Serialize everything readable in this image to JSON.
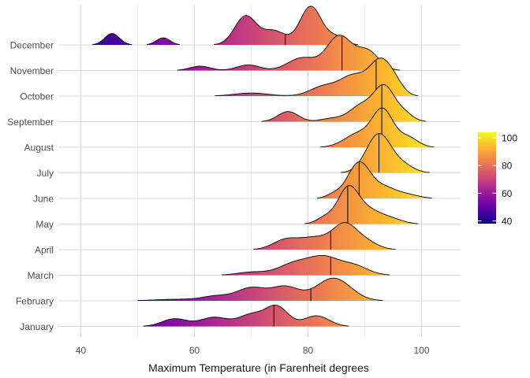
{
  "chart_data": {
    "type": "ridgeline",
    "xlabel": "Maximum Temperature (in Farenheit degrees",
    "xlim": [
      34,
      107
    ],
    "x_ticks": [
      40,
      60,
      80,
      100
    ],
    "categories": [
      "January",
      "February",
      "March",
      "April",
      "May",
      "June",
      "July",
      "August",
      "September",
      "October",
      "November",
      "December"
    ],
    "grid": true,
    "color_scale": {
      "name": "plasma",
      "range": [
        38,
        104
      ],
      "ticks": [
        40,
        60,
        80,
        100
      ],
      "stops": [
        "#0d0887",
        "#5c01a6",
        "#9c179e",
        "#cc4778",
        "#ed7953",
        "#fdb42f",
        "#f0f921"
      ],
      "legend_position": "right"
    },
    "series": [
      {
        "name": "January",
        "median": 74,
        "peaks": [
          [
            56.5,
            0.3,
            2.2
          ],
          [
            63.5,
            0.36,
            2.5
          ],
          [
            70,
            0.45,
            2.2
          ],
          [
            74.5,
            0.78,
            2.0
          ],
          [
            81.5,
            0.42,
            2.2
          ]
        ]
      },
      {
        "name": "February",
        "median": 80.5,
        "peaks": [
          [
            57,
            0.06,
            4.0
          ],
          [
            64,
            0.18,
            2.5
          ],
          [
            70,
            0.5,
            2.5
          ],
          [
            76,
            0.55,
            2.5
          ],
          [
            84.5,
            0.9,
            3.0
          ]
        ]
      },
      {
        "name": "March",
        "median": 84,
        "peaks": [
          [
            70,
            0.12,
            2.5
          ],
          [
            78,
            0.5,
            3.0
          ],
          [
            83,
            0.6,
            2.5
          ],
          [
            88,
            0.38,
            2.5
          ]
        ]
      },
      {
        "name": "April",
        "median": 84,
        "peaks": [
          [
            76,
            0.38,
            2.2
          ],
          [
            81,
            0.45,
            2.5
          ],
          [
            86.5,
            1.0,
            2.2
          ],
          [
            90.5,
            0.25,
            2.0
          ]
        ]
      },
      {
        "name": "May",
        "median": 87,
        "peaks": [
          [
            83,
            0.25,
            1.5
          ],
          [
            87,
            1.3,
            1.8
          ],
          [
            90.5,
            0.55,
            2.5
          ],
          [
            95,
            0.15,
            2.0
          ]
        ]
      },
      {
        "name": "June",
        "median": 89,
        "peaks": [
          [
            84.5,
            0.15,
            1.3
          ],
          [
            89,
            1.42,
            2.0
          ],
          [
            93.5,
            0.4,
            2.0
          ],
          [
            97.5,
            0.15,
            2.0
          ]
        ]
      },
      {
        "name": "July",
        "median": 92.5,
        "peaks": [
          [
            92.5,
            1.55,
            2.2
          ],
          [
            97,
            0.25,
            1.8
          ]
        ]
      },
      {
        "name": "August",
        "median": 93,
        "peaks": [
          [
            89,
            0.55,
            2.5
          ],
          [
            93.2,
            1.4,
            1.8
          ],
          [
            97.5,
            0.4,
            1.8
          ]
        ]
      },
      {
        "name": "September",
        "median": 93,
        "peaks": [
          [
            76.5,
            0.4,
            1.8
          ],
          [
            84,
            0.12,
            1.8
          ],
          [
            89.5,
            0.65,
            2.2
          ],
          [
            93.5,
            1.32,
            1.8
          ],
          [
            97,
            0.3,
            1.5
          ]
        ]
      },
      {
        "name": "October",
        "median": 92,
        "peaks": [
          [
            70,
            0.12,
            3.0
          ],
          [
            83,
            0.4,
            2.5
          ],
          [
            88,
            0.75,
            2.2
          ],
          [
            92.8,
            1.38,
            2.0
          ],
          [
            95.5,
            0.3,
            1.5
          ]
        ]
      },
      {
        "name": "November",
        "median": 86,
        "peaks": [
          [
            61,
            0.17,
            1.8
          ],
          [
            69.5,
            0.22,
            2.0
          ],
          [
            79,
            0.5,
            2.5
          ],
          [
            85.5,
            1.35,
            2.2
          ],
          [
            90.5,
            0.75,
            2.0
          ]
        ]
      },
      {
        "name": "December",
        "median": 76,
        "peaks": [
          [
            45.5,
            0.45,
            1.3
          ],
          [
            54.5,
            0.28,
            1.2
          ],
          [
            69,
            1.14,
            1.9
          ],
          [
            74,
            0.55,
            2.0
          ],
          [
            80.5,
            1.53,
            1.9
          ],
          [
            85,
            0.3,
            1.5
          ]
        ]
      }
    ]
  }
}
